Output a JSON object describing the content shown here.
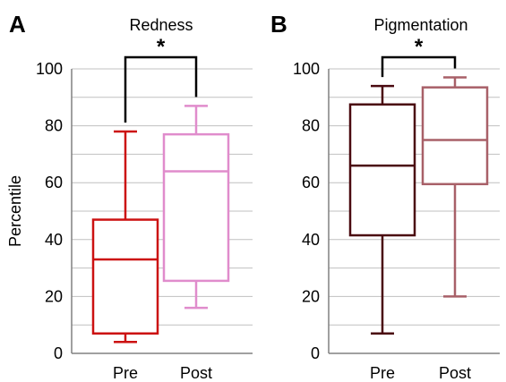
{
  "chart_data": [
    {
      "type": "box",
      "panel_label": "A",
      "title": "Redness",
      "ylabel": "Percentile",
      "ylim": [
        0,
        100
      ],
      "yticks": [
        0,
        20,
        40,
        60,
        80,
        100
      ],
      "categories": [
        "Pre",
        "Post"
      ],
      "grid": true,
      "series": [
        {
          "category": "Pre",
          "color": "#cc1111",
          "min": 4,
          "q1": 7,
          "median": 33,
          "q3": 47,
          "max": 78
        },
        {
          "category": "Post",
          "color": "#e08ccc",
          "min": 16,
          "q1": 25.5,
          "median": 64,
          "q3": 77,
          "max": 87
        }
      ],
      "significance": {
        "from": "Pre",
        "to": "Post",
        "label": "*"
      }
    },
    {
      "type": "box",
      "panel_label": "B",
      "title": "Pigmentation",
      "ylabel": "",
      "ylim": [
        0,
        100
      ],
      "yticks": [
        0,
        20,
        40,
        60,
        80,
        100
      ],
      "categories": [
        "Pre",
        "Post"
      ],
      "grid": true,
      "series": [
        {
          "category": "Pre",
          "color": "#4a0a10",
          "min": 7,
          "q1": 41.5,
          "median": 66,
          "q3": 87.5,
          "max": 94
        },
        {
          "category": "Post",
          "color": "#a86068",
          "min": 20,
          "q1": 59.5,
          "median": 75,
          "q3": 93.5,
          "max": 97
        }
      ],
      "significance": {
        "from": "Pre",
        "to": "Post",
        "label": "*"
      }
    }
  ]
}
